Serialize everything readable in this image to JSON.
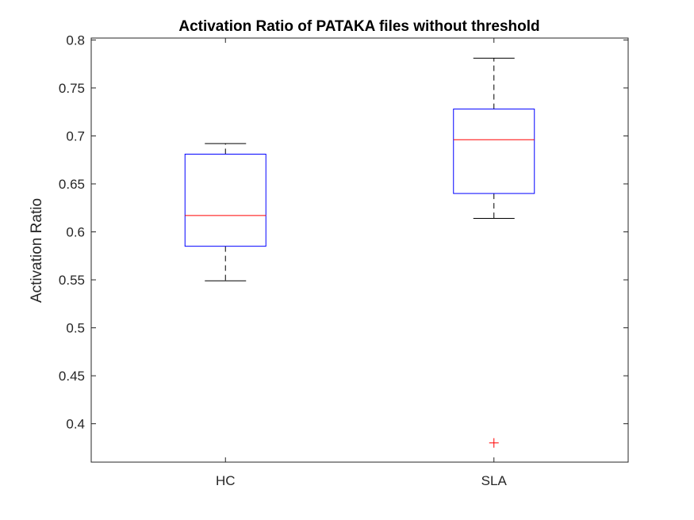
{
  "chart_data": {
    "type": "boxplot",
    "title": "Activation Ratio of PATAKA files without threshold",
    "xlabel": "",
    "ylabel": "Activation Ratio",
    "categories": [
      "HC",
      "SLA"
    ],
    "ylim": [
      0.36,
      0.802
    ],
    "yticks": [
      0.4,
      0.45,
      0.5,
      0.55,
      0.6,
      0.65,
      0.7,
      0.75,
      0.8
    ],
    "ytick_labels": [
      "0.4",
      "0.45",
      "0.5",
      "0.55",
      "0.6",
      "0.65",
      "0.7",
      "0.75",
      "0.8"
    ],
    "boxes": [
      {
        "category": "HC",
        "whisker_low": 0.549,
        "q1": 0.585,
        "median": 0.617,
        "q3": 0.681,
        "whisker_high": 0.692,
        "outliers": []
      },
      {
        "category": "SLA",
        "whisker_low": 0.614,
        "q1": 0.64,
        "median": 0.696,
        "q3": 0.728,
        "whisker_high": 0.781,
        "outliers": [
          0.38
        ]
      }
    ],
    "grid": false,
    "legend": "none",
    "colors": {
      "box": "#0000ff",
      "median": "#ff0000",
      "whisker": "#000000",
      "outlier": "#ff0000",
      "axis": "#262626"
    }
  }
}
